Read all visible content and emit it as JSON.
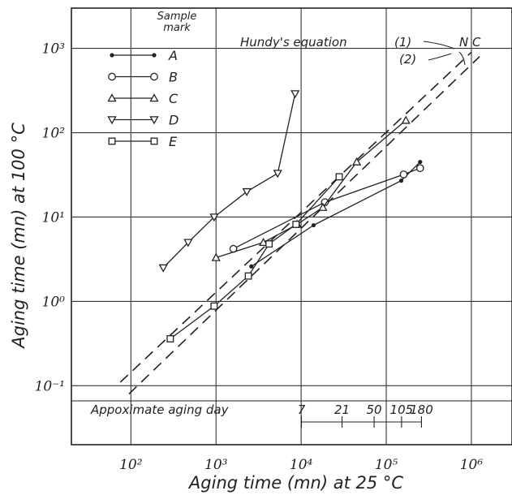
{
  "chart_data": {
    "type": "line",
    "xlabel": "Aging time (mn) at 25 °C",
    "ylabel": "Aging time (mn) at 100 °C",
    "x_scale": "log",
    "y_scale": "log",
    "xlim": [
      20,
      3000000
    ],
    "ylim": [
      0.02,
      3000
    ],
    "x_ticks": [
      {
        "value": 100,
        "label": "10²"
      },
      {
        "value": 1000,
        "label": "10³"
      },
      {
        "value": 10000,
        "label": "10⁴"
      },
      {
        "value": 100000,
        "label": "10⁵"
      },
      {
        "value": 1000000,
        "label": "10⁶"
      }
    ],
    "y_ticks": [
      {
        "value": 0.1,
        "label": "10⁻¹"
      },
      {
        "value": 1,
        "label": "10⁰"
      },
      {
        "value": 10,
        "label": "10¹"
      },
      {
        "value": 100,
        "label": "10²"
      },
      {
        "value": 1000,
        "label": "10³"
      }
    ],
    "grid": true,
    "legend_title": "Sample mark",
    "legend_position": "top-left",
    "series": [
      {
        "name": "A",
        "marker": "dot",
        "x": [
          2600,
          14000,
          150000,
          250000
        ],
        "y": [
          2.6,
          8,
          27,
          45
        ]
      },
      {
        "name": "B",
        "marker": "circle",
        "x": [
          1600,
          19000,
          160000,
          250000
        ],
        "y": [
          4.2,
          15,
          32,
          38
        ]
      },
      {
        "name": "C",
        "marker": "triangle-up",
        "x": [
          1000,
          3600,
          9000,
          18000,
          45000,
          170000
        ],
        "y": [
          3.3,
          5,
          8.2,
          13,
          45,
          140
        ]
      },
      {
        "name": "D",
        "marker": "triangle-down",
        "x": [
          240,
          470,
          950,
          2300,
          5300,
          8500
        ],
        "y": [
          2.5,
          5,
          10,
          20,
          33,
          290
        ]
      },
      {
        "name": "E",
        "marker": "square",
        "x": [
          290,
          950,
          2400,
          4200,
          8700,
          28000
        ],
        "y": [
          0.36,
          0.88,
          2,
          4.8,
          8.2,
          30
        ]
      }
    ],
    "reference_lines": [
      {
        "name": "(1)",
        "style": "dashed",
        "x": [
          75,
          1000000
        ],
        "y": [
          0.11,
          900
        ]
      },
      {
        "name": "(2)",
        "style": "dashed",
        "x": [
          95,
          1250000
        ],
        "y": [
          0.08,
          800
        ]
      }
    ],
    "annotations": {
      "equation": "Hundy's equation",
      "nc_label": "N C",
      "aging_day_label": "Appoximate aging day",
      "aging_days": [
        {
          "label": "7",
          "x": 10080
        },
        {
          "label": "21",
          "x": 30240
        },
        {
          "label": "50",
          "x": 72000
        },
        {
          "label": "105",
          "x": 151200
        },
        {
          "label": "180",
          "x": 259200
        }
      ]
    }
  }
}
